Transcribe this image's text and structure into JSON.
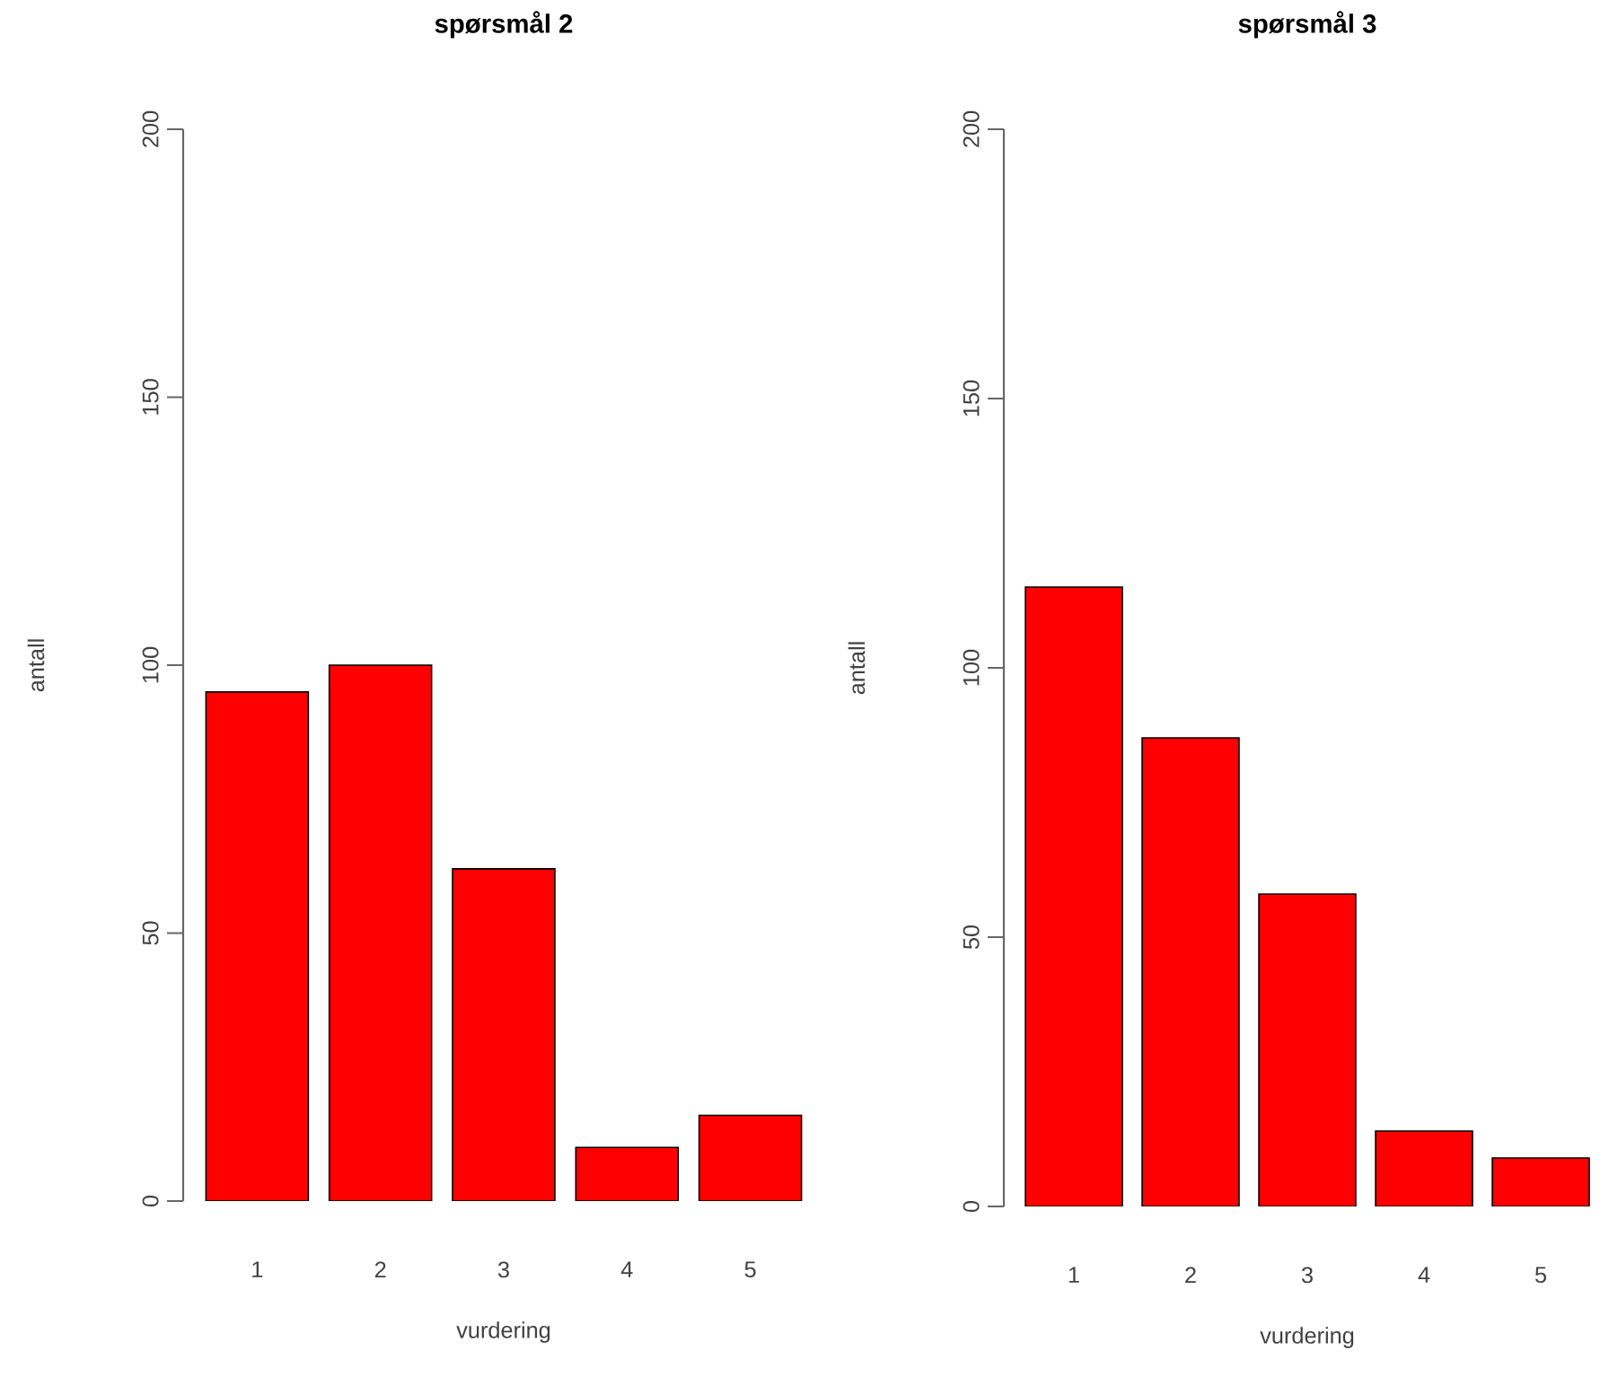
{
  "chart_data": [
    {
      "type": "bar",
      "title": "spørsmål 2",
      "xlabel": "vurdering",
      "ylabel": "antall",
      "categories": [
        "1",
        "2",
        "3",
        "4",
        "5"
      ],
      "values": [
        95,
        100,
        62,
        10,
        16
      ],
      "color": "#ff0000",
      "ylim": [
        0,
        200
      ],
      "yticks": [
        0,
        50,
        100,
        150,
        200
      ]
    },
    {
      "type": "bar",
      "title": "spørsmål 3",
      "xlabel": "vurdering",
      "ylabel": "antall",
      "categories": [
        "1",
        "2",
        "3",
        "4",
        "5"
      ],
      "values": [
        115,
        87,
        58,
        14,
        9
      ],
      "color": "#ff0000",
      "ylim": [
        0,
        200
      ],
      "yticks": [
        0,
        50,
        100,
        150,
        200
      ]
    }
  ]
}
